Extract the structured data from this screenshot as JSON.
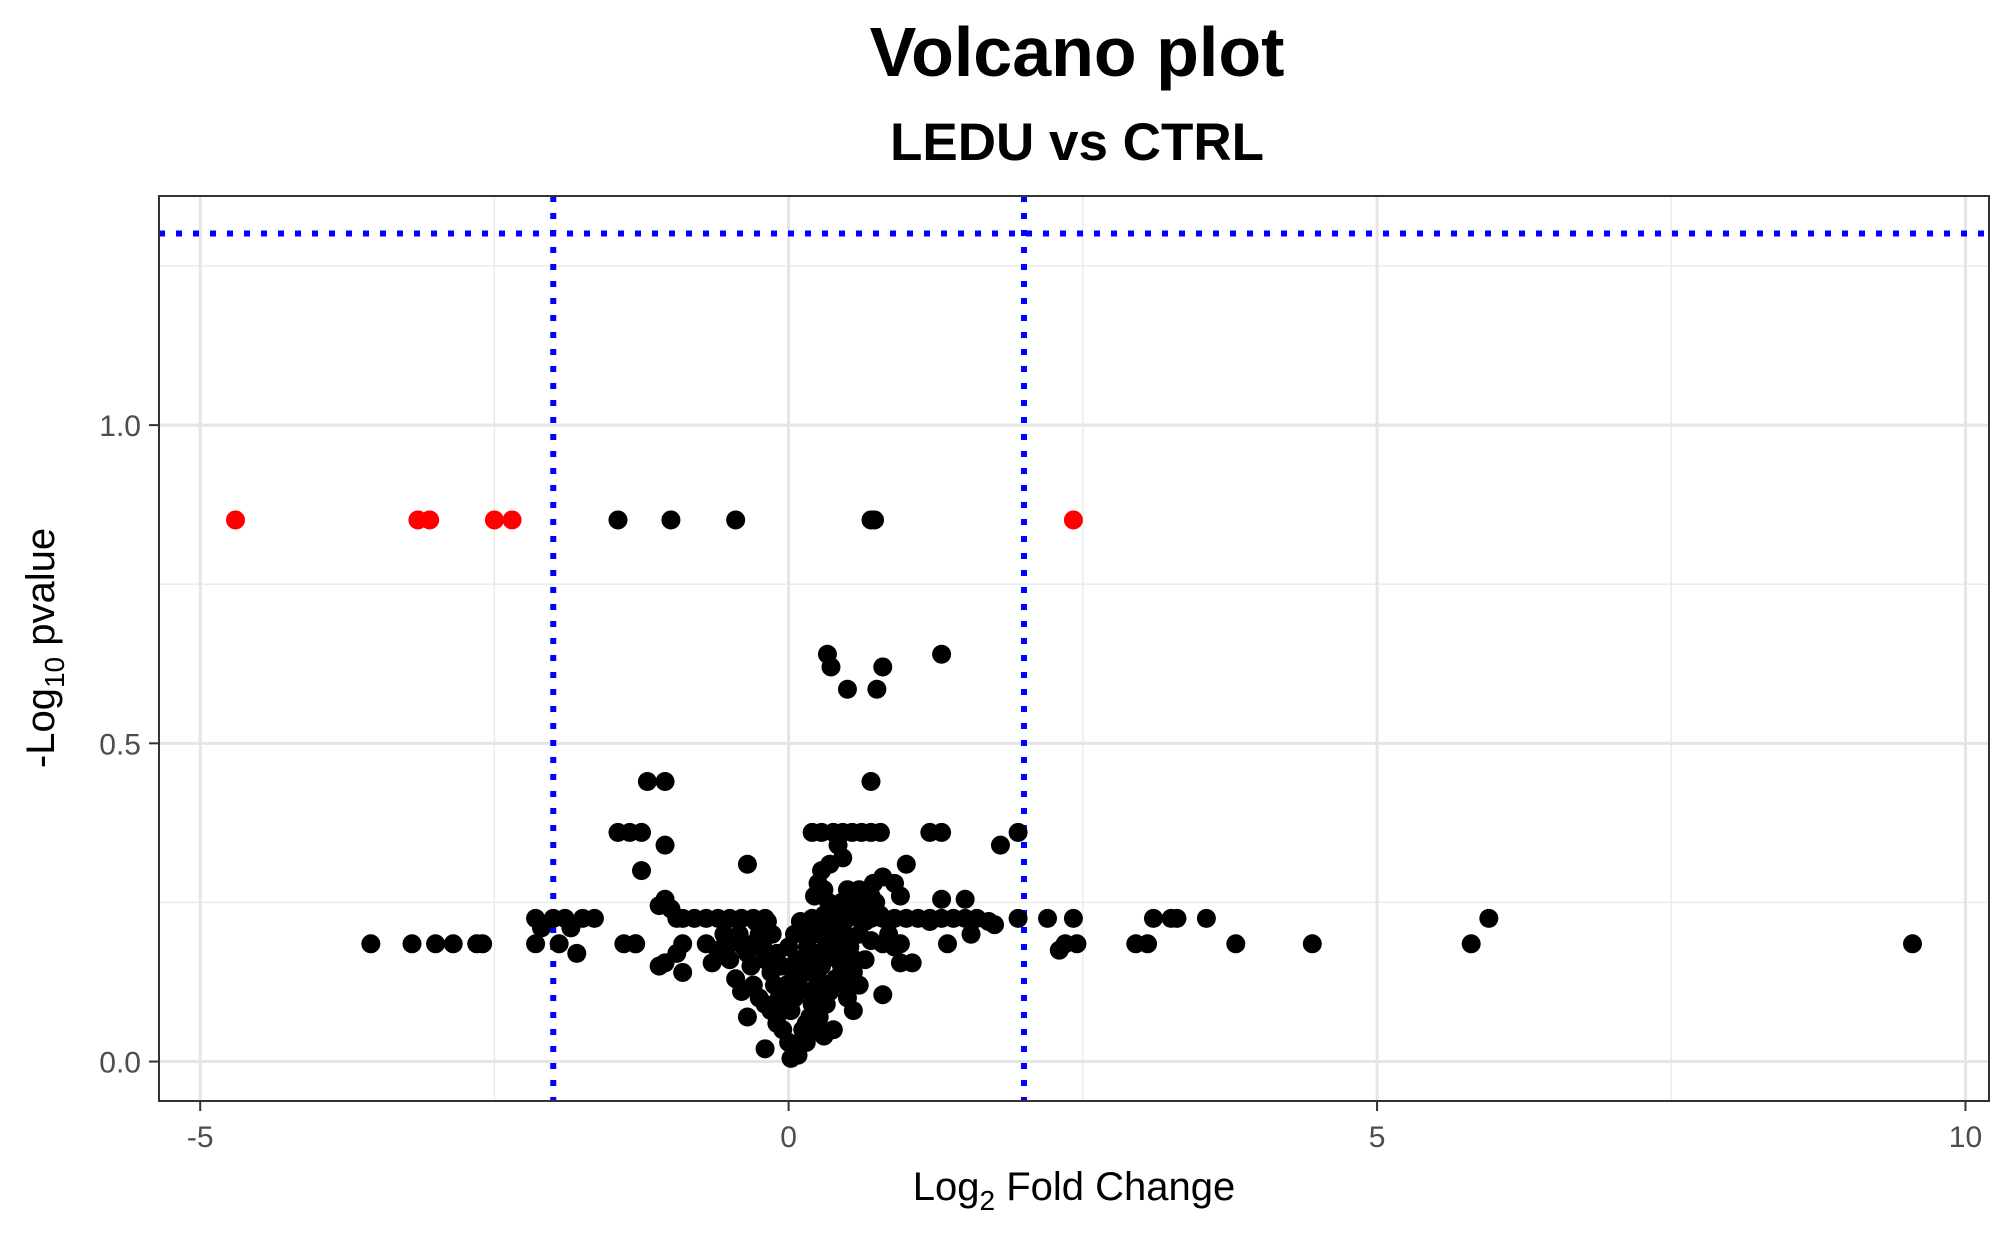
{
  "chart_data": {
    "type": "scatter",
    "title": "Volcano plot",
    "subtitle": "LEDU vs CTRL",
    "xlabel": {
      "pre": "Log",
      "sub": "2",
      "post": " Fold Change"
    },
    "ylabel": {
      "pre": "-Log",
      "sub": "10",
      "post": " pvalue"
    },
    "xlim": [
      -5.35,
      10.2
    ],
    "ylim": [
      -0.062,
      1.36
    ],
    "x_ticks": [
      {
        "value": -5,
        "label": "-5"
      },
      {
        "value": 0,
        "label": "0"
      },
      {
        "value": 5,
        "label": "5"
      },
      {
        "value": 10,
        "label": "10"
      }
    ],
    "y_ticks": [
      {
        "value": 0,
        "label": "0.0"
      },
      {
        "value": 0.5,
        "label": "0.5"
      },
      {
        "value": 1,
        "label": "1.0"
      }
    ],
    "x_minor": [
      -2.5,
      2.5,
      7.5
    ],
    "y_minor": [
      0.25,
      0.75,
      1.25
    ],
    "grid": true,
    "thresholds": {
      "fold_change": [
        -2,
        2
      ],
      "pvalue_line": 1.301,
      "line_color": "#0000ff"
    },
    "colors": {
      "significant": "#ff0000",
      "other": "#000000"
    },
    "series": [
      {
        "color_key": "significant",
        "points": [
          [
            -4.7,
            0.851
          ],
          [
            -3.15,
            0.851
          ],
          [
            -3.05,
            0.851
          ],
          [
            -2.5,
            0.851
          ],
          [
            -2.35,
            0.851
          ],
          [
            2.42,
            0.851
          ]
        ]
      },
      {
        "color_key": "other",
        "points": [
          [
            -1.45,
            0.851
          ],
          [
            -1.0,
            0.851
          ],
          [
            -0.45,
            0.851
          ],
          [
            0.7,
            0.851
          ],
          [
            0.73,
            0.851
          ],
          [
            0.33,
            0.64
          ],
          [
            0.36,
            0.62
          ],
          [
            0.5,
            0.585
          ],
          [
            0.75,
            0.585
          ],
          [
            0.8,
            0.62
          ],
          [
            1.3,
            0.64
          ],
          [
            -1.2,
            0.44
          ],
          [
            -1.05,
            0.44
          ],
          [
            0.7,
            0.44
          ],
          [
            -1.45,
            0.36
          ],
          [
            -1.35,
            0.36
          ],
          [
            -1.25,
            0.36
          ],
          [
            -1.05,
            0.34
          ],
          [
            -1.25,
            0.3
          ],
          [
            0.2,
            0.36
          ],
          [
            0.28,
            0.36
          ],
          [
            0.38,
            0.36
          ],
          [
            0.46,
            0.36
          ],
          [
            0.54,
            0.36
          ],
          [
            0.62,
            0.36
          ],
          [
            0.7,
            0.36
          ],
          [
            0.78,
            0.36
          ],
          [
            1.2,
            0.36
          ],
          [
            1.3,
            0.36
          ],
          [
            1.95,
            0.36
          ],
          [
            1.8,
            0.34
          ],
          [
            0.42,
            0.34
          ],
          [
            0.46,
            0.32
          ],
          [
            0.35,
            0.31
          ],
          [
            0.28,
            0.3
          ],
          [
            0.25,
            0.28
          ],
          [
            0.3,
            0.27
          ],
          [
            0.22,
            0.26
          ],
          [
            0.5,
            0.27
          ],
          [
            0.6,
            0.27
          ],
          [
            0.72,
            0.28
          ],
          [
            0.8,
            0.29
          ],
          [
            0.9,
            0.28
          ],
          [
            1.0,
            0.31
          ],
          [
            0.95,
            0.26
          ],
          [
            0.45,
            0.25
          ],
          [
            0.55,
            0.25
          ],
          [
            1.3,
            0.255
          ],
          [
            1.5,
            0.255
          ],
          [
            -0.35,
            0.31
          ],
          [
            -1.05,
            0.255
          ],
          [
            -1.0,
            0.24
          ],
          [
            -1.1,
            0.245
          ],
          [
            -1.3,
            0.185
          ],
          [
            -1.4,
            0.185
          ],
          [
            -0.95,
            0.225
          ],
          [
            -0.9,
            0.225
          ],
          [
            -0.8,
            0.225
          ],
          [
            -0.7,
            0.225
          ],
          [
            -0.6,
            0.225
          ],
          [
            -0.5,
            0.225
          ],
          [
            -0.4,
            0.225
          ],
          [
            -0.3,
            0.225
          ],
          [
            -0.2,
            0.225
          ],
          [
            0.2,
            0.225
          ],
          [
            0.3,
            0.225
          ],
          [
            0.4,
            0.225
          ],
          [
            0.5,
            0.225
          ],
          [
            0.6,
            0.225
          ],
          [
            0.7,
            0.225
          ],
          [
            0.8,
            0.225
          ],
          [
            0.9,
            0.225
          ],
          [
            1.0,
            0.225
          ],
          [
            1.1,
            0.225
          ],
          [
            1.2,
            0.225
          ],
          [
            1.3,
            0.225
          ],
          [
            1.4,
            0.225
          ],
          [
            1.5,
            0.225
          ],
          [
            1.6,
            0.225
          ],
          [
            1.7,
            0.22
          ],
          [
            1.75,
            0.215
          ],
          [
            1.95,
            0.225
          ],
          [
            2.2,
            0.225
          ],
          [
            2.42,
            0.225
          ],
          [
            3.1,
            0.225
          ],
          [
            3.25,
            0.225
          ],
          [
            3.3,
            0.225
          ],
          [
            3.55,
            0.225
          ],
          [
            5.95,
            0.225
          ],
          [
            -2.15,
            0.225
          ],
          [
            -2.1,
            0.21
          ],
          [
            -2.0,
            0.225
          ],
          [
            -1.9,
            0.225
          ],
          [
            -1.85,
            0.21
          ],
          [
            -1.8,
            0.17
          ],
          [
            -1.75,
            0.225
          ],
          [
            -1.65,
            0.225
          ],
          [
            -3.55,
            0.185
          ],
          [
            -3.2,
            0.185
          ],
          [
            -3.0,
            0.185
          ],
          [
            -2.85,
            0.185
          ],
          [
            -2.65,
            0.185
          ],
          [
            -2.6,
            0.185
          ],
          [
            -2.15,
            0.185
          ],
          [
            -1.95,
            0.185
          ],
          [
            -1.3,
            0.185
          ],
          [
            -0.9,
            0.185
          ],
          [
            -0.7,
            0.185
          ],
          [
            -0.5,
            0.185
          ],
          [
            -0.3,
            0.185
          ],
          [
            0.35,
            0.185
          ],
          [
            0.8,
            0.185
          ],
          [
            0.95,
            0.185
          ],
          [
            1.35,
            0.185
          ],
          [
            2.3,
            0.175
          ],
          [
            2.35,
            0.185
          ],
          [
            2.45,
            0.185
          ],
          [
            2.95,
            0.185
          ],
          [
            3.05,
            0.185
          ],
          [
            3.8,
            0.185
          ],
          [
            4.45,
            0.185
          ],
          [
            5.8,
            0.185
          ],
          [
            9.55,
            0.185
          ],
          [
            -1.1,
            0.15
          ],
          [
            -1.05,
            0.155
          ],
          [
            -0.95,
            0.17
          ],
          [
            -0.9,
            0.14
          ],
          [
            -0.65,
            0.155
          ],
          [
            -0.6,
            0.175
          ],
          [
            -0.35,
            0.17
          ],
          [
            -0.2,
            0.16
          ],
          [
            0.45,
            0.15
          ],
          [
            0.55,
            0.14
          ],
          [
            0.65,
            0.16
          ],
          [
            0.8,
            0.105
          ],
          [
            0.95,
            0.155
          ],
          [
            1.05,
            0.155
          ],
          [
            1.55,
            0.2
          ],
          [
            1.2,
            0.22
          ],
          [
            -0.45,
            0.13
          ],
          [
            -0.4,
            0.11
          ],
          [
            -0.3,
            0.12
          ],
          [
            -0.25,
            0.1
          ],
          [
            -0.2,
            0.09
          ],
          [
            -0.15,
            0.08
          ],
          [
            -0.35,
            0.07
          ],
          [
            -0.1,
            0.06
          ],
          [
            -0.05,
            0.05
          ],
          [
            0.0,
            0.03
          ],
          [
            0.05,
            0.02
          ],
          [
            -0.2,
            0.02
          ],
          [
            0.02,
            0.005
          ],
          [
            0.08,
            0.01
          ],
          [
            0.1,
            0.03
          ],
          [
            0.12,
            0.05
          ],
          [
            0.15,
            0.06
          ],
          [
            0.18,
            0.07
          ],
          [
            0.2,
            0.09
          ],
          [
            0.22,
            0.11
          ],
          [
            0.25,
            0.13
          ],
          [
            0.28,
            0.15
          ],
          [
            0.3,
            0.17
          ],
          [
            0.32,
            0.19
          ],
          [
            0.35,
            0.21
          ],
          [
            0.38,
            0.2
          ],
          [
            0.4,
            0.18
          ],
          [
            0.42,
            0.16
          ],
          [
            0.45,
            0.14
          ],
          [
            0.48,
            0.12
          ],
          [
            0.5,
            0.1
          ],
          [
            0.55,
            0.08
          ],
          [
            0.6,
            0.12
          ],
          [
            0.38,
            0.05
          ],
          [
            0.3,
            0.04
          ],
          [
            0.25,
            0.06
          ],
          [
            0.2,
            0.05
          ],
          [
            0.15,
            0.03
          ],
          [
            -0.05,
            0.08
          ],
          [
            -0.08,
            0.1
          ],
          [
            -0.12,
            0.12
          ],
          [
            -0.15,
            0.14
          ],
          [
            -0.18,
            0.16
          ],
          [
            -0.22,
            0.18
          ],
          [
            -0.25,
            0.2
          ],
          [
            -0.28,
            0.22
          ],
          [
            0.0,
            0.18
          ],
          [
            0.05,
            0.2
          ],
          [
            0.1,
            0.22
          ],
          [
            0.12,
            0.16
          ],
          [
            0.15,
            0.14
          ],
          [
            0.08,
            0.12
          ],
          [
            0.05,
            0.1
          ],
          [
            0.02,
            0.08
          ],
          [
            0.18,
            0.11
          ],
          [
            0.22,
            0.09
          ],
          [
            0.26,
            0.07
          ],
          [
            0.32,
            0.09
          ],
          [
            0.35,
            0.11
          ],
          [
            0.4,
            0.13
          ],
          [
            0.44,
            0.22
          ],
          [
            0.48,
            0.2
          ],
          [
            0.52,
            0.18
          ],
          [
            0.56,
            0.16
          ],
          [
            0.6,
            0.2
          ],
          [
            0.65,
            0.22
          ],
          [
            0.7,
            0.19
          ],
          [
            0.58,
            0.24
          ],
          [
            0.62,
            0.26
          ],
          [
            0.66,
            0.24
          ],
          [
            0.7,
            0.26
          ],
          [
            0.74,
            0.25
          ],
          [
            0.78,
            0.23
          ],
          [
            0.85,
            0.2
          ],
          [
            0.9,
            0.18
          ],
          [
            0.34,
            0.25
          ],
          [
            0.3,
            0.23
          ],
          [
            0.26,
            0.2
          ],
          [
            0.24,
            0.17
          ],
          [
            0.19,
            0.15
          ],
          [
            0.16,
            0.18
          ],
          [
            0.14,
            0.2
          ],
          [
            0.11,
            0.14
          ],
          [
            0.07,
            0.16
          ],
          [
            0.04,
            0.14
          ],
          [
            -0.02,
            0.12
          ],
          [
            -0.06,
            0.15
          ],
          [
            -0.1,
            0.17
          ],
          [
            -0.14,
            0.2
          ],
          [
            -0.18,
            0.22
          ],
          [
            -0.32,
            0.15
          ],
          [
            -0.38,
            0.18
          ],
          [
            -0.42,
            0.2
          ],
          [
            -0.5,
            0.16
          ],
          [
            -0.55,
            0.2
          ]
        ]
      }
    ]
  }
}
